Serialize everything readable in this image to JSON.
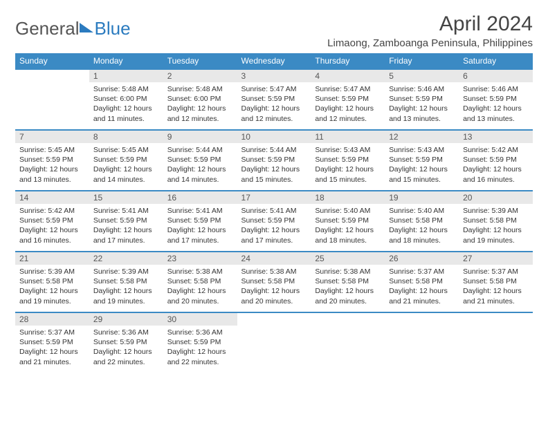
{
  "brand": {
    "part1": "General",
    "part2": "Blue"
  },
  "title": "April 2024",
  "location": "Limaong, Zamboanga Peninsula, Philippines",
  "colors": {
    "header_bg": "#3b8ac4",
    "header_text": "#ffffff",
    "daynum_bg": "#e8e8e8",
    "border": "#3b8ac4",
    "text": "#333333"
  },
  "type": "table",
  "columns": [
    "Sunday",
    "Monday",
    "Tuesday",
    "Wednesday",
    "Thursday",
    "Friday",
    "Saturday"
  ],
  "weeks": [
    [
      {
        "n": "",
        "sr": "",
        "ss": "",
        "dl": ""
      },
      {
        "n": "1",
        "sr": "Sunrise: 5:48 AM",
        "ss": "Sunset: 6:00 PM",
        "dl": "Daylight: 12 hours and 11 minutes."
      },
      {
        "n": "2",
        "sr": "Sunrise: 5:48 AM",
        "ss": "Sunset: 6:00 PM",
        "dl": "Daylight: 12 hours and 12 minutes."
      },
      {
        "n": "3",
        "sr": "Sunrise: 5:47 AM",
        "ss": "Sunset: 5:59 PM",
        "dl": "Daylight: 12 hours and 12 minutes."
      },
      {
        "n": "4",
        "sr": "Sunrise: 5:47 AM",
        "ss": "Sunset: 5:59 PM",
        "dl": "Daylight: 12 hours and 12 minutes."
      },
      {
        "n": "5",
        "sr": "Sunrise: 5:46 AM",
        "ss": "Sunset: 5:59 PM",
        "dl": "Daylight: 12 hours and 13 minutes."
      },
      {
        "n": "6",
        "sr": "Sunrise: 5:46 AM",
        "ss": "Sunset: 5:59 PM",
        "dl": "Daylight: 12 hours and 13 minutes."
      }
    ],
    [
      {
        "n": "7",
        "sr": "Sunrise: 5:45 AM",
        "ss": "Sunset: 5:59 PM",
        "dl": "Daylight: 12 hours and 13 minutes."
      },
      {
        "n": "8",
        "sr": "Sunrise: 5:45 AM",
        "ss": "Sunset: 5:59 PM",
        "dl": "Daylight: 12 hours and 14 minutes."
      },
      {
        "n": "9",
        "sr": "Sunrise: 5:44 AM",
        "ss": "Sunset: 5:59 PM",
        "dl": "Daylight: 12 hours and 14 minutes."
      },
      {
        "n": "10",
        "sr": "Sunrise: 5:44 AM",
        "ss": "Sunset: 5:59 PM",
        "dl": "Daylight: 12 hours and 15 minutes."
      },
      {
        "n": "11",
        "sr": "Sunrise: 5:43 AM",
        "ss": "Sunset: 5:59 PM",
        "dl": "Daylight: 12 hours and 15 minutes."
      },
      {
        "n": "12",
        "sr": "Sunrise: 5:43 AM",
        "ss": "Sunset: 5:59 PM",
        "dl": "Daylight: 12 hours and 15 minutes."
      },
      {
        "n": "13",
        "sr": "Sunrise: 5:42 AM",
        "ss": "Sunset: 5:59 PM",
        "dl": "Daylight: 12 hours and 16 minutes."
      }
    ],
    [
      {
        "n": "14",
        "sr": "Sunrise: 5:42 AM",
        "ss": "Sunset: 5:59 PM",
        "dl": "Daylight: 12 hours and 16 minutes."
      },
      {
        "n": "15",
        "sr": "Sunrise: 5:41 AM",
        "ss": "Sunset: 5:59 PM",
        "dl": "Daylight: 12 hours and 17 minutes."
      },
      {
        "n": "16",
        "sr": "Sunrise: 5:41 AM",
        "ss": "Sunset: 5:59 PM",
        "dl": "Daylight: 12 hours and 17 minutes."
      },
      {
        "n": "17",
        "sr": "Sunrise: 5:41 AM",
        "ss": "Sunset: 5:59 PM",
        "dl": "Daylight: 12 hours and 17 minutes."
      },
      {
        "n": "18",
        "sr": "Sunrise: 5:40 AM",
        "ss": "Sunset: 5:59 PM",
        "dl": "Daylight: 12 hours and 18 minutes."
      },
      {
        "n": "19",
        "sr": "Sunrise: 5:40 AM",
        "ss": "Sunset: 5:58 PM",
        "dl": "Daylight: 12 hours and 18 minutes."
      },
      {
        "n": "20",
        "sr": "Sunrise: 5:39 AM",
        "ss": "Sunset: 5:58 PM",
        "dl": "Daylight: 12 hours and 19 minutes."
      }
    ],
    [
      {
        "n": "21",
        "sr": "Sunrise: 5:39 AM",
        "ss": "Sunset: 5:58 PM",
        "dl": "Daylight: 12 hours and 19 minutes."
      },
      {
        "n": "22",
        "sr": "Sunrise: 5:39 AM",
        "ss": "Sunset: 5:58 PM",
        "dl": "Daylight: 12 hours and 19 minutes."
      },
      {
        "n": "23",
        "sr": "Sunrise: 5:38 AM",
        "ss": "Sunset: 5:58 PM",
        "dl": "Daylight: 12 hours and 20 minutes."
      },
      {
        "n": "24",
        "sr": "Sunrise: 5:38 AM",
        "ss": "Sunset: 5:58 PM",
        "dl": "Daylight: 12 hours and 20 minutes."
      },
      {
        "n": "25",
        "sr": "Sunrise: 5:38 AM",
        "ss": "Sunset: 5:58 PM",
        "dl": "Daylight: 12 hours and 20 minutes."
      },
      {
        "n": "26",
        "sr": "Sunrise: 5:37 AM",
        "ss": "Sunset: 5:58 PM",
        "dl": "Daylight: 12 hours and 21 minutes."
      },
      {
        "n": "27",
        "sr": "Sunrise: 5:37 AM",
        "ss": "Sunset: 5:58 PM",
        "dl": "Daylight: 12 hours and 21 minutes."
      }
    ],
    [
      {
        "n": "28",
        "sr": "Sunrise: 5:37 AM",
        "ss": "Sunset: 5:59 PM",
        "dl": "Daylight: 12 hours and 21 minutes."
      },
      {
        "n": "29",
        "sr": "Sunrise: 5:36 AM",
        "ss": "Sunset: 5:59 PM",
        "dl": "Daylight: 12 hours and 22 minutes."
      },
      {
        "n": "30",
        "sr": "Sunrise: 5:36 AM",
        "ss": "Sunset: 5:59 PM",
        "dl": "Daylight: 12 hours and 22 minutes."
      },
      {
        "n": "",
        "sr": "",
        "ss": "",
        "dl": ""
      },
      {
        "n": "",
        "sr": "",
        "ss": "",
        "dl": ""
      },
      {
        "n": "",
        "sr": "",
        "ss": "",
        "dl": ""
      },
      {
        "n": "",
        "sr": "",
        "ss": "",
        "dl": ""
      }
    ]
  ]
}
